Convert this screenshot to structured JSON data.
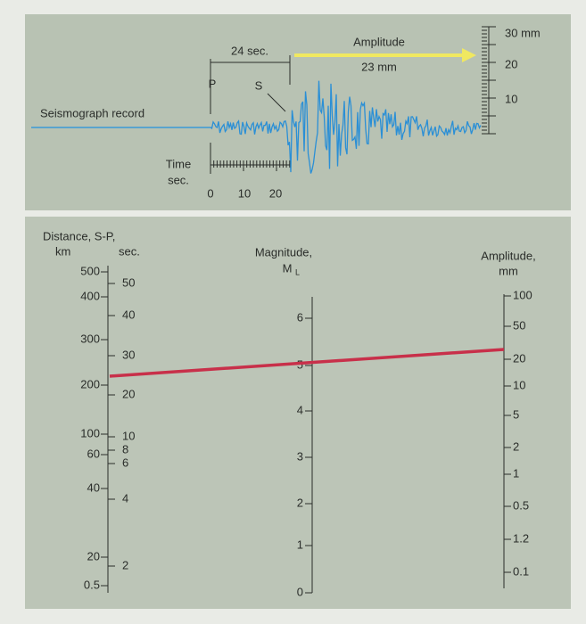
{
  "record": {
    "interval": "24 sec.",
    "amplitude_title": "Amplitude",
    "amplitude_value": "23 mm",
    "scale": [
      "30 mm",
      "20",
      "10"
    ],
    "p": "P",
    "s": "S",
    "label": "Seismograph record",
    "time_label": [
      "Time",
      "sec."
    ],
    "time_ticks": [
      "0",
      "10",
      "20"
    ]
  },
  "nomogram": {
    "distance": {
      "title": "Distance, S-P,",
      "km_label": "km",
      "sec_label": "sec.",
      "km_ticks": [
        "500",
        "400",
        "300",
        "200",
        "100",
        "60",
        "40",
        "20",
        "0.5"
      ],
      "sec_ticks": [
        "50",
        "40",
        "30",
        "20",
        "10",
        "8",
        "6",
        "4",
        "2"
      ]
    },
    "magnitude": {
      "title": "Magnitude,",
      "symbol": "M",
      "subscript": "L",
      "ticks": [
        "6",
        "5",
        "4",
        "3",
        "2",
        "1",
        "0"
      ]
    },
    "amplitude": {
      "title": "Amplitude,",
      "unit": "mm",
      "ticks": [
        "100",
        "50",
        "20",
        "10",
        "5",
        "2",
        "1",
        "0.5",
        "1.2",
        "0.1"
      ]
    }
  }
}
